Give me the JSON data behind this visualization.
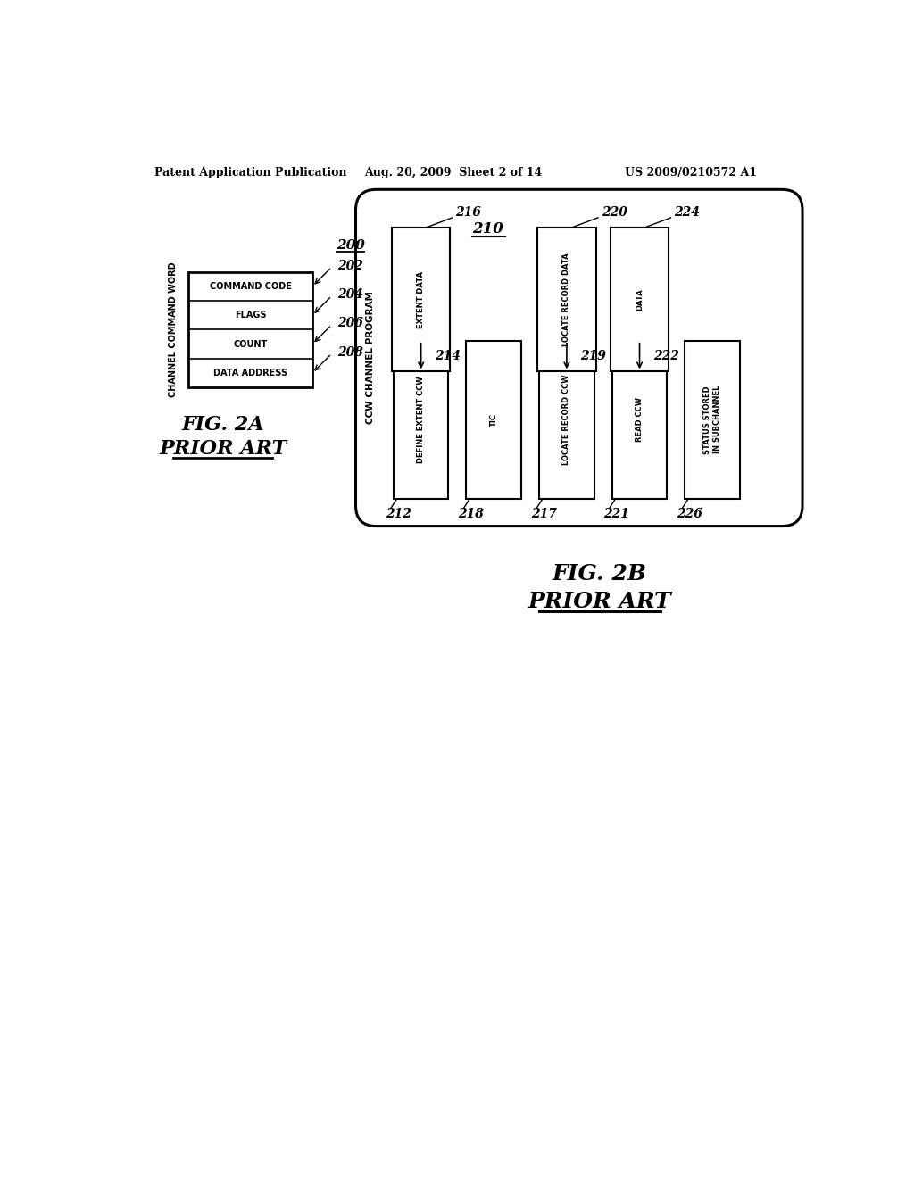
{
  "bg_color": "#ffffff",
  "header_left": "Patent Application Publication",
  "header_mid": "Aug. 20, 2009  Sheet 2 of 14",
  "header_right": "US 2009/0210572 A1",
  "fig2a_title": "CHANNEL COMMAND WORD",
  "fig2a_label": "200",
  "fig2a_rows": [
    {
      "label": "COMMAND CODE",
      "ref": "202"
    },
    {
      "label": "FLAGS",
      "ref": "204"
    },
    {
      "label": "COUNT",
      "ref": "206"
    },
    {
      "label": "DATA ADDRESS",
      "ref": "208"
    }
  ],
  "fig2b_outer_label": "210",
  "fig2b_outer_sublabel": "CCW CHANNEL PROGRAM",
  "fig2b_ccws": [
    {
      "label": "DEFINE EXTENT CCW",
      "ref": "212",
      "has_data": true,
      "data_ref": "216",
      "data_label": "EXTENT DATA",
      "arrow_ref": "214"
    },
    {
      "label": "TIC",
      "ref": "218",
      "has_data": false,
      "data_ref": "",
      "data_label": "",
      "arrow_ref": ""
    },
    {
      "label": "LOCATE RECORD CCW",
      "ref": "217",
      "has_data": true,
      "data_ref": "220",
      "data_label": "LOCATE RECORD DATA",
      "arrow_ref": "219"
    },
    {
      "label": "READ CCW",
      "ref": "221",
      "has_data": true,
      "data_ref": "224",
      "data_label": "DATA",
      "arrow_ref": "222"
    },
    {
      "label": "STATUS STORED\nIN SUBCHANNEL",
      "ref": "226",
      "has_data": false,
      "data_ref": "",
      "data_label": "",
      "arrow_ref": ""
    }
  ],
  "fig2b_caption_line1": "FIG. 2B",
  "fig2b_caption_line2": "PRIOR ART",
  "fig2a_caption_line1": "FIG. 2A",
  "fig2a_caption_line2": "PRIOR ART"
}
